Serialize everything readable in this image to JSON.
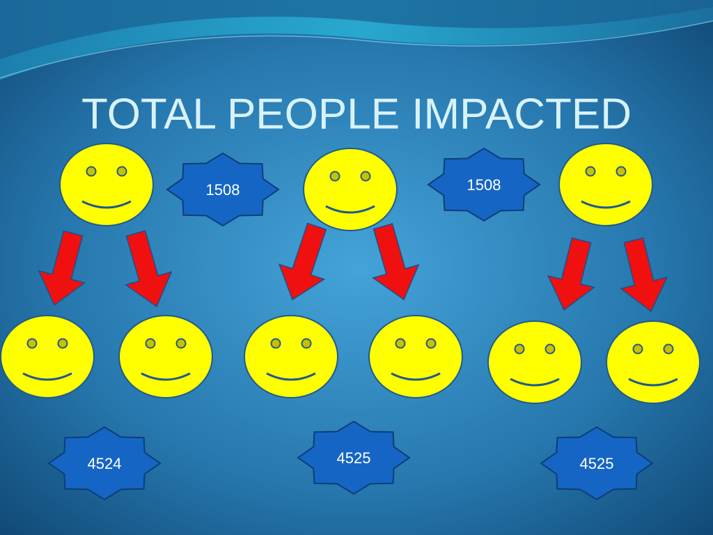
{
  "title": "TOTAL PEOPLE IMPACTED",
  "top_badges": [
    1508,
    1508
  ],
  "bottom_badges": [
    4524,
    4525,
    4525
  ]
}
